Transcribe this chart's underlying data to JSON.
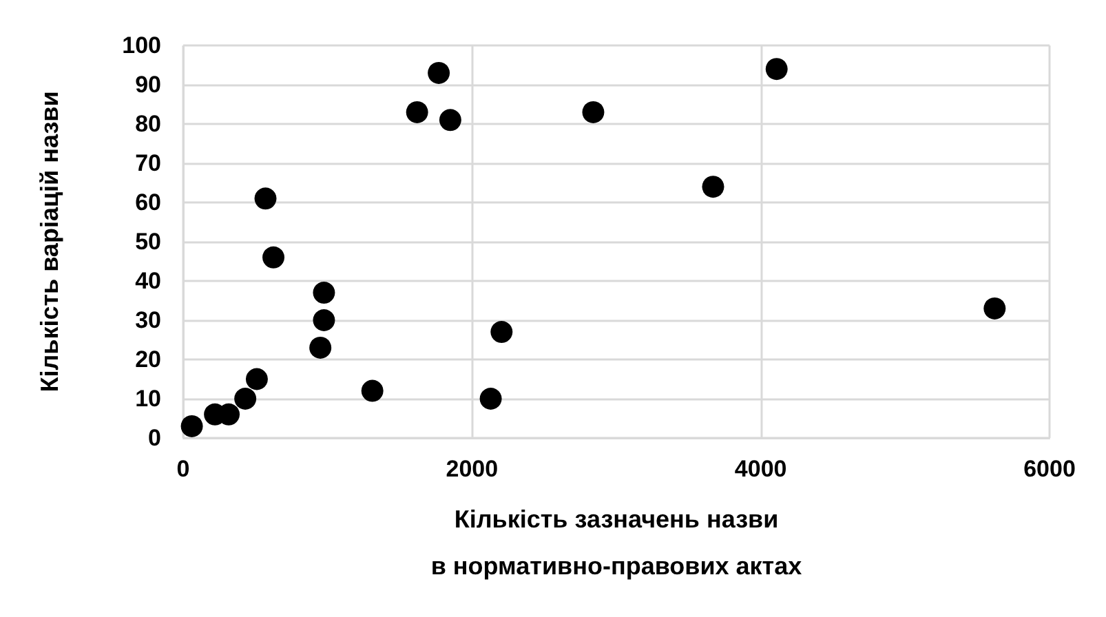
{
  "chart_data": {
    "type": "scatter",
    "xlabel": "Кількість зазначень назви\nв нормативно-правових актах",
    "ylabel": "Кількість варіацій назви",
    "x": [
      60,
      220,
      315,
      430,
      510,
      570,
      625,
      950,
      975,
      975,
      1310,
      1620,
      1770,
      1850,
      2130,
      2205,
      2840,
      3670,
      4110,
      5620
    ],
    "series": [
      {
        "color": "#000000",
        "values": [
          3,
          6,
          6,
          10,
          15,
          61,
          46,
          23,
          30,
          37,
          12,
          83,
          93,
          81,
          10,
          27,
          83,
          64,
          94,
          33
        ]
      }
    ],
    "xlim": [
      0,
      6000
    ],
    "xticks": [
      0,
      2000,
      4000,
      6000
    ],
    "ylim": [
      0,
      100
    ],
    "yticks": [
      0,
      10,
      20,
      30,
      40,
      50,
      60,
      70,
      80,
      90,
      100
    ],
    "grid": true,
    "marker": "circle"
  }
}
